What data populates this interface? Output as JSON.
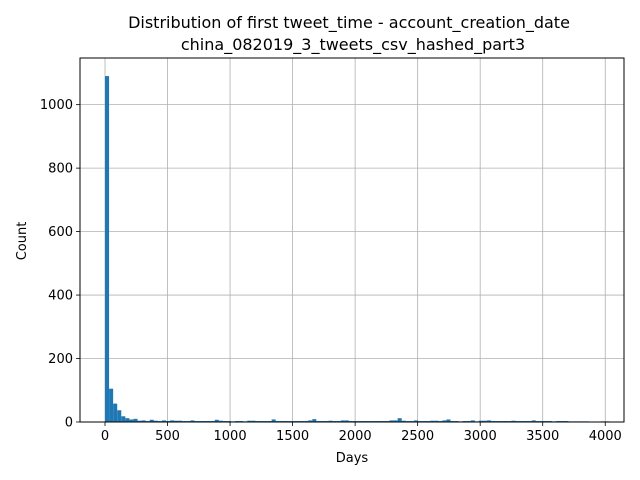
{
  "chart_data": {
    "type": "bar",
    "title_line1": "Distribution of first tweet_time - account_creation_date",
    "title_line2": "china_082019_3_tweets_csv_hashed_part3",
    "xlabel": "Days",
    "ylabel": "Count",
    "xlim": [
      -200,
      4150
    ],
    "ylim": [
      0,
      1147
    ],
    "xticks": [
      0,
      500,
      1000,
      1500,
      2000,
      2500,
      3000,
      3500,
      4000
    ],
    "yticks": [
      0,
      200,
      400,
      600,
      800,
      1000
    ],
    "grid": true,
    "bar_color": "#1f77b4",
    "bin_width": 32.5,
    "x_start": 0,
    "values": [
      1090,
      105,
      58,
      37,
      18,
      12,
      8,
      10,
      4,
      5,
      3,
      7,
      4,
      3,
      5,
      3,
      5,
      4,
      4,
      3,
      3,
      5,
      3,
      3,
      3,
      3,
      3,
      7,
      4,
      3,
      3,
      2,
      3,
      3,
      2,
      4,
      4,
      3,
      3,
      3,
      3,
      8,
      3,
      3,
      3,
      3,
      3,
      3,
      3,
      3,
      5,
      9,
      3,
      3,
      3,
      4,
      3,
      3,
      5,
      5,
      3,
      3,
      3,
      3,
      3,
      3,
      3,
      3,
      3,
      3,
      5,
      5,
      12,
      4,
      3,
      3,
      5,
      3,
      3,
      3,
      4,
      4,
      3,
      5,
      8,
      3,
      3,
      2,
      3,
      3,
      5,
      2,
      4,
      4,
      5,
      3,
      3,
      3,
      3,
      3,
      4,
      3,
      3,
      3,
      3,
      5,
      3,
      3,
      3,
      3,
      2,
      3,
      3,
      3,
      2,
      2,
      2,
      2,
      2,
      1,
      1,
      1,
      2,
      2
    ]
  }
}
